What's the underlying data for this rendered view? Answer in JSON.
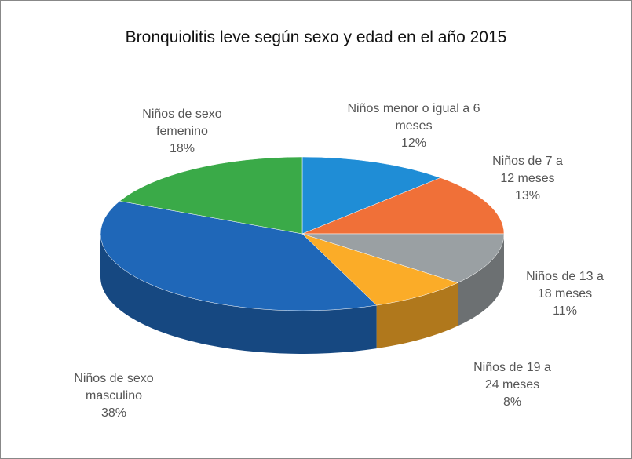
{
  "chart_data": {
    "type": "pie",
    "title": "Bronquiolitis leve según sexo y edad en el año 2015",
    "categories": [
      "Niños menor o igual a 6 meses",
      "Niños de 7 a 12 meses",
      "Niños de 13 a 18 meses",
      "Niños de 19 a 24 meses",
      "Niños de sexo masculino",
      "Niños de sexo femenino"
    ],
    "values": [
      12,
      13,
      11,
      8,
      38,
      18
    ],
    "value_labels": [
      "12%",
      "13%",
      "11%",
      "8%",
      "38%",
      "18%"
    ],
    "colors": [
      "#1f8dd6",
      "#f07038",
      "#9aa0a3",
      "#fbac28",
      "#1f67b8",
      "#3aaa48"
    ]
  }
}
